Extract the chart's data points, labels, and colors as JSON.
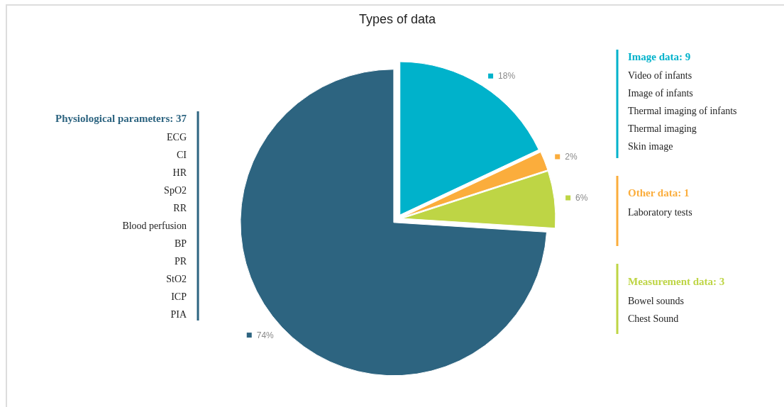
{
  "chart_data": {
    "type": "pie",
    "title": "Types of data",
    "categories": [
      "Image data: 9",
      "Other data: 1",
      "Measurement data: 3",
      "Physiological parameters: 37"
    ],
    "values": [
      18,
      2,
      6,
      74
    ],
    "value_labels": [
      "18%",
      "2%",
      "6%",
      "74%"
    ],
    "colors": [
      "#00b2cb",
      "#fbad3c",
      "#bed545",
      "#2d6480"
    ],
    "legend": "right",
    "annotations": [
      "Video of infants\nImage of infants\nThermal imaging of infants\nThermal imaging\nSkin image",
      "Laboratory tests",
      "Bowel sounds\nChest Sound",
      "ECG\nCI\nHR\nSpO2\nRR\nBlood perfusion\nBP\nPR\nStO2\nICP\nPIA"
    ]
  }
}
